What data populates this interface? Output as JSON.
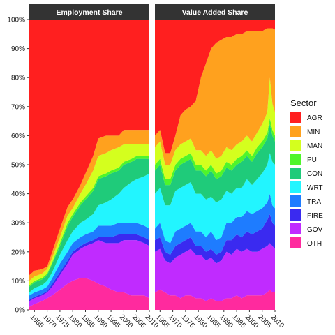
{
  "chart_data": {
    "type": "area",
    "stacked": true,
    "panels": [
      {
        "title": "Employment Share"
      },
      {
        "title": "Value Added Share"
      }
    ],
    "x_range": [
      1963,
      2010
    ],
    "x_ticks": [
      1965,
      1970,
      1975,
      1980,
      1985,
      1990,
      1995,
      2000,
      2005,
      2010
    ],
    "y_ticks": [
      0,
      10,
      20,
      30,
      40,
      50,
      60,
      70,
      80,
      90,
      100
    ],
    "y_tick_labels": [
      "0%",
      "10%",
      "20%",
      "30%",
      "40%",
      "50%",
      "60%",
      "70%",
      "80%",
      "90%",
      "100%"
    ],
    "legend": {
      "title": "Sector",
      "position": "right"
    },
    "series": [
      {
        "name": "OTH",
        "color": "#FF2A9E"
      },
      {
        "name": "GOV",
        "color": "#C02BFF"
      },
      {
        "name": "FIRE",
        "color": "#3A2AF0"
      },
      {
        "name": "TRA",
        "color": "#1E7CFF"
      },
      {
        "name": "WRT",
        "color": "#22F5FF"
      },
      {
        "name": "CON",
        "color": "#1FCB7A"
      },
      {
        "name": "PU",
        "color": "#4FF52A"
      },
      {
        "name": "MAN",
        "color": "#D4FF1E"
      },
      {
        "name": "MIN",
        "color": "#FFA11E"
      },
      {
        "name": "AGR",
        "color": "#FF1F1F"
      }
    ],
    "cumulative_percent": {
      "Employment Share": {
        "x": [
          1963,
          1965,
          1968,
          1970,
          1972,
          1975,
          1978,
          1980,
          1983,
          1985,
          1988,
          1990,
          1993,
          1995,
          1998,
          2000,
          2003,
          2005,
          2008,
          2010
        ],
        "OTH": [
          1,
          2,
          3,
          4,
          5,
          7,
          9,
          10,
          11,
          11,
          10,
          9,
          8,
          7,
          6,
          6,
          5,
          5,
          5,
          4
        ],
        "GOV": [
          3,
          4,
          5,
          6,
          8,
          12,
          16,
          19,
          21,
          22,
          23,
          24,
          23,
          23,
          23,
          24,
          24,
          24,
          23,
          22
        ],
        "FIRE": [
          3.5,
          4.5,
          5.5,
          6.5,
          9,
          13,
          17,
          20,
          22,
          23,
          24,
          25,
          25,
          25,
          26,
          26,
          26,
          26,
          25,
          24
        ],
        "TRA": [
          5,
          6,
          7,
          8,
          11,
          16,
          20,
          23,
          25,
          26,
          27,
          29,
          29,
          29,
          30,
          30,
          30,
          30,
          29,
          28
        ],
        "WRT": [
          6,
          7.5,
          8.5,
          10,
          13,
          19,
          24,
          27,
          30,
          31,
          33,
          36,
          37,
          38,
          40,
          42,
          44,
          45,
          46,
          47
        ],
        "CON": [
          8,
          9.5,
          10.5,
          12,
          16,
          22,
          29,
          32,
          36,
          38,
          41,
          45,
          46,
          47,
          48,
          50,
          51,
          52,
          52,
          52
        ],
        "PU": [
          8.5,
          10,
          11,
          12.5,
          16.5,
          23,
          30,
          33,
          37,
          39,
          42,
          46,
          47,
          48,
          49,
          51,
          52,
          53,
          53,
          53
        ],
        "MAN": [
          10,
          11.5,
          12.5,
          14,
          18,
          25,
          32.5,
          35,
          40,
          43,
          48,
          53,
          54,
          55,
          56,
          57,
          57,
          57,
          57,
          57
        ],
        "MIN": [
          12,
          13.5,
          14,
          15,
          20,
          28,
          35.5,
          38,
          43,
          47,
          53,
          59,
          60,
          60,
          60,
          62,
          62,
          62,
          62,
          62
        ],
        "AGR": [
          100,
          100,
          100,
          100,
          100,
          100,
          100,
          100,
          100,
          100,
          100,
          100,
          100,
          100,
          100,
          100,
          100,
          100,
          100,
          100
        ]
      },
      "Value Added Share": {
        "x": [
          1963,
          1965,
          1967,
          1969,
          1971,
          1973,
          1975,
          1977,
          1979,
          1981,
          1983,
          1985,
          1987,
          1989,
          1991,
          1993,
          1995,
          1997,
          1999,
          2001,
          2003,
          2005,
          2007,
          2008,
          2009,
          2010
        ],
        "OTH": [
          6,
          7,
          6,
          5,
          5,
          4,
          5,
          5,
          4,
          4,
          3,
          4,
          3,
          3,
          4,
          4,
          5,
          4,
          5,
          5,
          5,
          5,
          6,
          7,
          6,
          6
        ],
        "GOV": [
          20,
          21,
          17,
          16,
          18,
          19,
          20,
          21,
          19,
          19,
          17,
          18,
          16,
          17,
          20,
          19,
          21,
          20,
          21,
          20,
          20,
          21,
          22,
          23,
          22,
          21
        ],
        "FIRE": [
          24,
          25,
          20,
          19,
          22,
          23,
          24,
          25,
          22,
          22,
          20,
          21,
          19,
          20,
          24,
          24,
          26,
          25,
          27,
          26,
          27,
          28,
          31,
          33,
          30,
          29
        ],
        "TRA": [
          28,
          30,
          24,
          23,
          27,
          28,
          29,
          30,
          27,
          27,
          25,
          27,
          24,
          25,
          30,
          30,
          32,
          32,
          34,
          33,
          34,
          35,
          37,
          40,
          36,
          35
        ],
        "WRT": [
          40,
          42,
          36,
          36,
          41,
          42,
          43,
          44,
          40,
          40,
          38,
          39,
          37,
          38,
          41,
          40,
          42,
          42,
          45,
          43,
          45,
          47,
          50,
          54,
          51,
          50
        ],
        "CON": [
          48,
          50,
          43,
          43,
          48,
          50,
          51,
          52,
          48,
          48,
          46,
          48,
          45,
          46,
          49,
          48,
          50,
          51,
          53,
          51,
          54,
          56,
          59,
          64,
          60,
          58
        ],
        "PU": [
          50,
          52,
          45,
          45,
          50,
          52,
          53,
          54,
          50,
          50,
          48,
          50,
          47,
          48,
          51,
          50,
          52,
          53,
          55,
          53,
          56,
          58,
          61,
          66,
          62,
          60
        ],
        "MAN": [
          56,
          58,
          50,
          50,
          55,
          57,
          58,
          59,
          55,
          55,
          53,
          55,
          52,
          53,
          56,
          55,
          57,
          58,
          60,
          58,
          61,
          64,
          68,
          80,
          71,
          68
        ],
        "MIN": [
          58,
          60,
          52,
          52,
          56,
          58,
          59,
          60,
          56,
          56,
          54,
          56,
          53,
          54,
          57,
          56,
          58,
          59,
          61,
          59,
          62,
          65,
          69,
          81,
          72,
          69
        ],
        "AGR": [
          100,
          100,
          100,
          100,
          100,
          100,
          100,
          100,
          100,
          100,
          100,
          100,
          100,
          100,
          100,
          100,
          100,
          100,
          100,
          100,
          100,
          100,
          100,
          100,
          100,
          100
        ],
        "top_white": [
          100,
          100,
          100,
          100,
          100,
          100,
          100,
          100,
          100,
          100,
          100,
          100,
          100,
          100,
          100,
          100,
          100,
          100,
          100,
          100,
          100,
          100,
          100,
          100,
          100,
          100
        ]
      }
    },
    "value_added_agr_top_percent": {
      "x": [
        1963,
        1965,
        1967,
        1969,
        1971,
        1973,
        1975,
        1977,
        1979,
        1981,
        1983,
        1985,
        1987,
        1989,
        1991,
        1993,
        1995,
        1997,
        1999,
        2001,
        2003,
        2005,
        2007,
        2008,
        2009,
        2010
      ],
      "AGR_bottom": [
        60,
        62,
        54,
        54,
        60,
        67,
        69,
        70,
        72,
        80,
        85,
        90,
        92,
        93,
        94,
        94,
        95,
        95,
        96,
        96,
        96,
        96,
        97,
        97,
        97,
        96.5
      ]
    }
  }
}
